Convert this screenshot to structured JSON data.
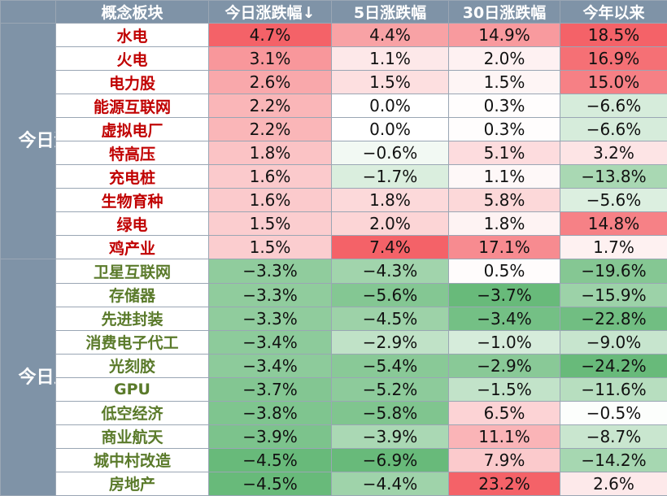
{
  "headers": [
    "概念板块",
    "今日涨跌幅↓",
    "5日涨跌幅",
    "30日涨跌幅",
    "今年以来"
  ],
  "groups": [
    {
      "label": "今日涨幅前十",
      "direction": "up",
      "rows": [
        {
          "name": "水电",
          "d1": "4.7%",
          "d5": "4.4%",
          "d30": "14.9%",
          "ytd": "18.5%"
        },
        {
          "name": "火电",
          "d1": "3.1%",
          "d5": "1.1%",
          "d30": "2.0%",
          "ytd": "16.9%"
        },
        {
          "name": "电力股",
          "d1": "2.6%",
          "d5": "1.5%",
          "d30": "1.5%",
          "ytd": "15.0%"
        },
        {
          "name": "能源互联网",
          "d1": "2.2%",
          "d5": "0.0%",
          "d30": "0.3%",
          "ytd": "−6.6%"
        },
        {
          "name": "虚拟电厂",
          "d1": "2.2%",
          "d5": "0.0%",
          "d30": "0.3%",
          "ytd": "−6.6%"
        },
        {
          "name": "特高压",
          "d1": "1.8%",
          "d5": "−0.6%",
          "d30": "5.1%",
          "ytd": "3.2%"
        },
        {
          "name": "充电桩",
          "d1": "1.6%",
          "d5": "−1.7%",
          "d30": "1.1%",
          "ytd": "−13.8%"
        },
        {
          "name": "生物育种",
          "d1": "1.6%",
          "d5": "1.8%",
          "d30": "5.8%",
          "ytd": "−5.6%"
        },
        {
          "name": "绿电",
          "d1": "1.5%",
          "d5": "2.0%",
          "d30": "1.8%",
          "ytd": "14.8%"
        },
        {
          "name": "鸡产业",
          "d1": "1.5%",
          "d5": "7.4%",
          "d30": "17.1%",
          "ytd": "1.7%"
        }
      ]
    },
    {
      "label": "今日跌幅前十",
      "direction": "down",
      "rows": [
        {
          "name": "卫星互联网",
          "d1": "−3.3%",
          "d5": "−4.3%",
          "d30": "0.5%",
          "ytd": "−19.6%"
        },
        {
          "name": "存储器",
          "d1": "−3.3%",
          "d5": "−5.6%",
          "d30": "−3.7%",
          "ytd": "−15.9%"
        },
        {
          "name": "先进封装",
          "d1": "−3.3%",
          "d5": "−4.5%",
          "d30": "−3.4%",
          "ytd": "−22.8%"
        },
        {
          "name": "消费电子代工",
          "d1": "−3.4%",
          "d5": "−2.9%",
          "d30": "−1.0%",
          "ytd": "−9.0%"
        },
        {
          "name": "光刻胶",
          "d1": "−3.4%",
          "d5": "−5.4%",
          "d30": "−2.9%",
          "ytd": "−24.2%"
        },
        {
          "name": "GPU",
          "d1": "−3.7%",
          "d5": "−5.2%",
          "d30": "−1.5%",
          "ytd": "−11.6%"
        },
        {
          "name": "低空经济",
          "d1": "−3.8%",
          "d5": "−5.8%",
          "d30": "6.5%",
          "ytd": "−0.5%"
        },
        {
          "name": "商业航天",
          "d1": "−3.9%",
          "d5": "−3.9%",
          "d30": "11.1%",
          "ytd": "−8.7%"
        },
        {
          "name": "城中村改造",
          "d1": "−4.5%",
          "d5": "−6.9%",
          "d30": "7.9%",
          "ytd": "−14.2%"
        },
        {
          "name": "房地产",
          "d1": "−4.5%",
          "d5": "−4.4%",
          "d30": "23.2%",
          "ytd": "2.6%"
        }
      ]
    }
  ]
}
